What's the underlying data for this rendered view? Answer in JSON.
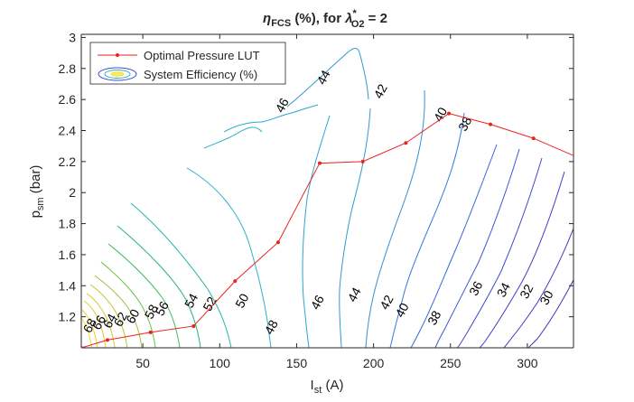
{
  "chart_data": {
    "type": "contour",
    "title": {
      "eta": "η",
      "eta_sub": "FCS",
      "mid": " (%), for ",
      "lambda": "λ",
      "lambda_sup": "*",
      "lambda_sub": "O2",
      "tail": " = 2"
    },
    "xlabel": {
      "main": "I",
      "sub": "st",
      "unit": " (A)"
    },
    "ylabel": {
      "main": "p",
      "sub": "sm",
      "unit": " (bar)"
    },
    "xlim": [
      10,
      330
    ],
    "ylim": [
      1.0,
      3.02
    ],
    "xticks": [
      50,
      100,
      150,
      200,
      250,
      300
    ],
    "yticks": [
      1.2,
      1.4,
      1.6,
      1.8,
      2,
      2.2,
      2.4,
      2.6,
      2.8,
      3
    ],
    "xtick_labels": [
      "50",
      "100",
      "150",
      "200",
      "250",
      "300"
    ],
    "ytick_labels": [
      "1.2",
      "1.4",
      "1.6",
      "1.8",
      "2",
      "2.2",
      "2.4",
      "2.6",
      "2.8",
      "3"
    ],
    "legend": {
      "position": "top-left",
      "entries": [
        "Optimal Pressure LUT",
        "System Efficiency (%)"
      ]
    },
    "series": [
      {
        "name": "Optimal Pressure LUT",
        "color": "#e8231f",
        "x": [
          10,
          27,
          55,
          83,
          110,
          138,
          165,
          193,
          221,
          249,
          276,
          304,
          332
        ],
        "y": [
          1.0,
          1.05,
          1.1,
          1.14,
          1.43,
          1.68,
          2.19,
          2.2,
          2.32,
          2.51,
          2.44,
          2.35,
          2.23
        ]
      }
    ],
    "contour_labels": [
      {
        "text": "48",
        "x": 26,
        "y": 0.88,
        "color": "#2cb0c9"
      },
      {
        "text": "46",
        "x": 143,
        "y": 2.55,
        "color": "#2aa7c8"
      },
      {
        "text": "44",
        "x": 170,
        "y": 2.73,
        "color": "#2f9bcf"
      },
      {
        "text": "42",
        "x": 207,
        "y": 2.64,
        "color": "#3290d6"
      },
      {
        "text": "40",
        "x": 246,
        "y": 2.49,
        "color": "#3479d9"
      },
      {
        "text": "38",
        "x": 262,
        "y": 2.43,
        "color": "#3668d9"
      },
      {
        "text": "52",
        "x": 96,
        "y": 1.27,
        "color": "#26b47e"
      },
      {
        "text": "50",
        "x": 117,
        "y": 1.29,
        "color": "#25b5a3"
      },
      {
        "text": "48",
        "x": 136,
        "y": 1.12,
        "color": "#2cb0c9"
      },
      {
        "text": "46",
        "x": 166,
        "y": 1.28,
        "color": "#2aa7c8"
      },
      {
        "text": "44",
        "x": 190,
        "y": 1.33,
        "color": "#2f9bcf"
      },
      {
        "text": "42",
        "x": 211,
        "y": 1.28,
        "color": "#3290d6"
      },
      {
        "text": "40",
        "x": 221,
        "y": 1.23,
        "color": "#3479d9"
      },
      {
        "text": "38",
        "x": 242,
        "y": 1.18,
        "color": "#3668d9"
      },
      {
        "text": "36",
        "x": 269,
        "y": 1.37,
        "color": "#3b58d6"
      },
      {
        "text": "34",
        "x": 287,
        "y": 1.36,
        "color": "#3e4ad2"
      },
      {
        "text": "32",
        "x": 302,
        "y": 1.35,
        "color": "#3f3dcc"
      },
      {
        "text": "30",
        "x": 315,
        "y": 1.31,
        "color": "#3f35c2"
      },
      {
        "text": "54",
        "x": 84,
        "y": 1.29,
        "color": "#3fba5d"
      },
      {
        "text": "56",
        "x": 65,
        "y": 1.24,
        "color": "#6cbf46"
      },
      {
        "text": "58",
        "x": 58,
        "y": 1.22,
        "color": "#9ac33b"
      },
      {
        "text": "60",
        "x": 46,
        "y": 1.19,
        "color": "#c4c331"
      },
      {
        "text": "62",
        "x": 38,
        "y": 1.17,
        "color": "#dcc12c"
      },
      {
        "text": "64",
        "x": 31,
        "y": 1.16,
        "color": "#ecc22a"
      },
      {
        "text": "66",
        "x": 24,
        "y": 1.15,
        "color": "#f6cf2a"
      },
      {
        "text": "68",
        "x": 18,
        "y": 1.13,
        "color": "#f8dd2a"
      }
    ]
  }
}
